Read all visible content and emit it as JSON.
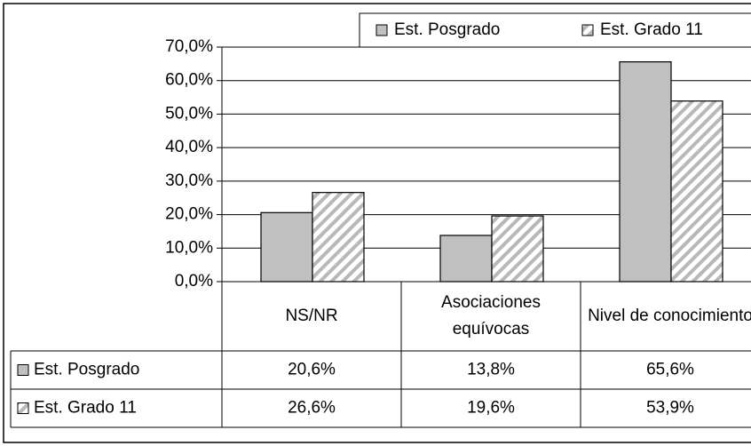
{
  "chart_data": {
    "type": "bar",
    "categories": [
      "NS/NR",
      "Asociaciones equívocas",
      "Nivel de conocimiento"
    ],
    "series": [
      {
        "name": "Est. Posgrado",
        "color": "#c0c0c0",
        "values": [
          20.6,
          13.8,
          65.6
        ],
        "value_labels": [
          "20,6%",
          "13,8%",
          "65,6%"
        ]
      },
      {
        "name": "Est. Grado 11",
        "color": "hatch",
        "values": [
          26.6,
          19.6,
          53.9
        ],
        "value_labels": [
          "26,6%",
          "19,6%",
          "53,9%"
        ]
      }
    ],
    "ylim": [
      0,
      70
    ],
    "yticks": [
      {
        "value": 0,
        "label": "0,0%"
      },
      {
        "value": 10,
        "label": "10,0%"
      },
      {
        "value": 20,
        "label": "20,0%"
      },
      {
        "value": 30,
        "label": "30,0%"
      },
      {
        "value": 40,
        "label": "40,0%"
      },
      {
        "value": 50,
        "label": "50,0%"
      },
      {
        "value": 60,
        "label": "60,0%"
      },
      {
        "value": 70,
        "label": "70,0%"
      }
    ],
    "grid": true,
    "legend": "top-right",
    "data_table": true
  }
}
